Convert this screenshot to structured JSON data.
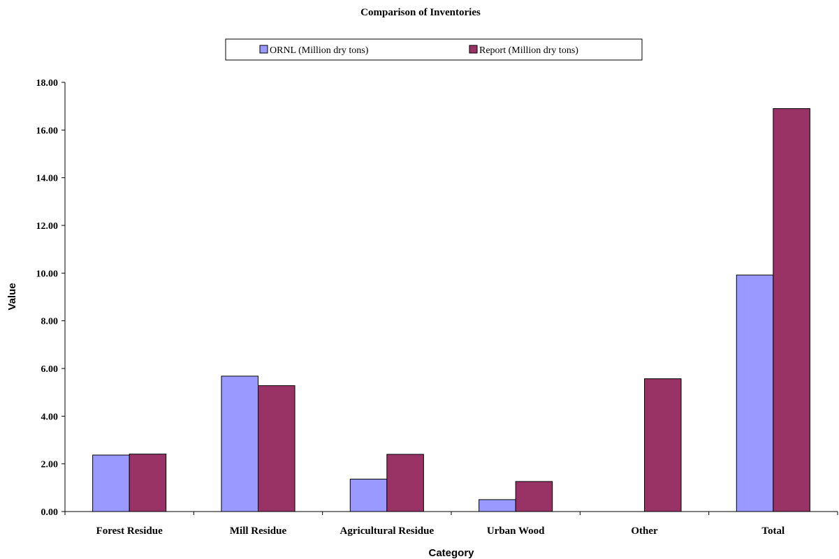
{
  "chart_data": {
    "type": "bar",
    "title": "Comparison of Inventories",
    "xlabel": "Category",
    "ylabel": "Value",
    "categories": [
      "Forest Residue",
      "Mill Residue",
      "Agricultural Residue",
      "Urban Wood",
      "Other",
      "Total"
    ],
    "series": [
      {
        "name": "ORNL (Million dry tons)",
        "color": "#9999ff",
        "values": [
          2.37,
          5.68,
          1.36,
          0.5,
          0,
          9.92
        ]
      },
      {
        "name": "Report (Million dry tons)",
        "color": "#993366",
        "values": [
          2.41,
          5.28,
          2.4,
          1.26,
          5.57,
          16.9
        ]
      }
    ],
    "ylim": [
      0,
      18
    ],
    "yticks": [
      "0.00",
      "2.00",
      "4.00",
      "6.00",
      "8.00",
      "10.00",
      "12.00",
      "14.00",
      "16.00",
      "18.00"
    ],
    "grid": false,
    "legend_position": "top"
  }
}
